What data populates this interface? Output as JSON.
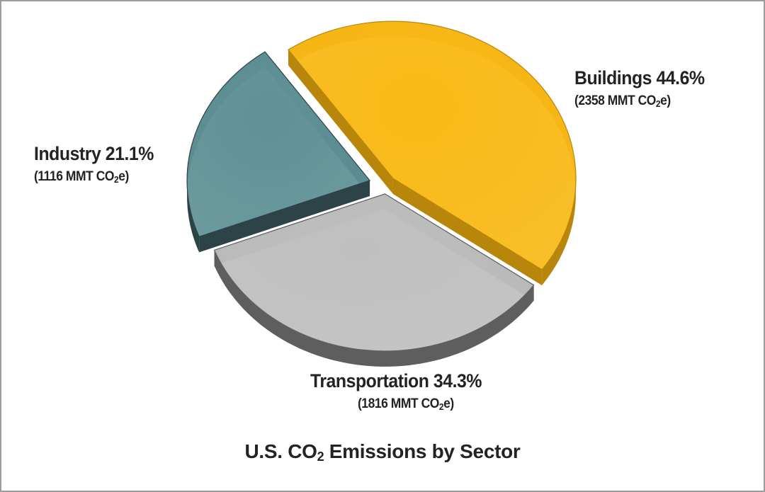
{
  "chart_data": {
    "type": "pie",
    "title_prefix": "U.S. CO",
    "title_sub": "2",
    "title_suffix": " Emissions by Sector",
    "slices": [
      {
        "name": "Buildings",
        "percent_label": "44.6%",
        "value": 2358,
        "value_prefix": "(2358 MMT CO",
        "value_sub": "2",
        "value_suffix": "e)",
        "color": "#f9b916",
        "side_color": "#b8860b"
      },
      {
        "name": "Transportation",
        "percent_label": "34.3%",
        "value": 1816,
        "value_prefix": "(1816 MMT CO",
        "value_sub": "2",
        "value_suffix": "e)",
        "color": "#bfbfbf",
        "side_color": "#5e5e5e"
      },
      {
        "name": "Industry",
        "percent_label": "21.1%",
        "value": 1116,
        "value_prefix": "(1116 MMT CO",
        "value_sub": "2",
        "value_suffix": "e)",
        "color": "#5f9196",
        "side_color": "#2c4447"
      }
    ],
    "style": "3d-exploded"
  }
}
